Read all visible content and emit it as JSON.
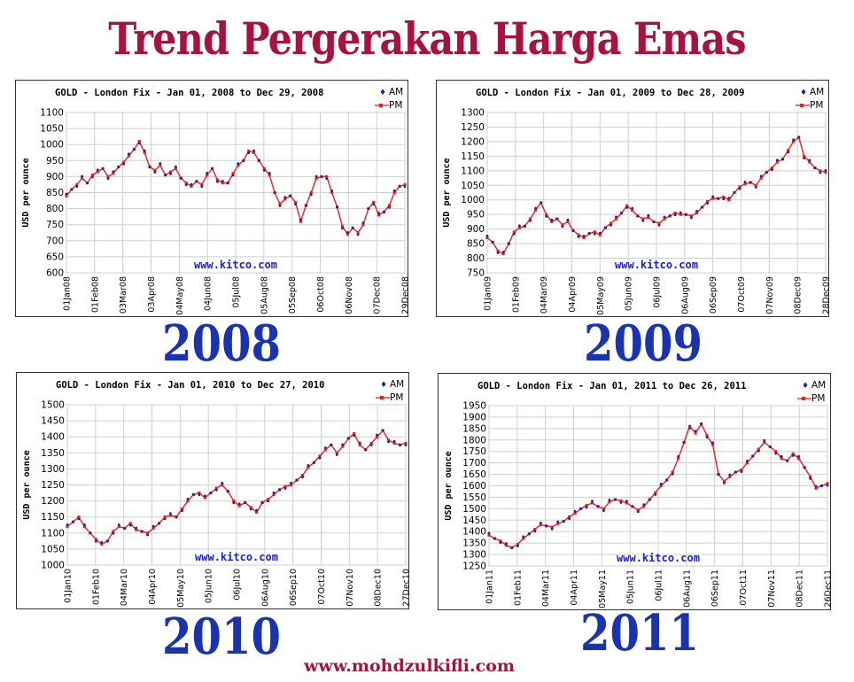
{
  "page": {
    "title": "Trend Pergerakan Harga Emas",
    "footer": "www.mohdzulkifli.com"
  },
  "colors": {
    "title": "#a8123e",
    "year": "#1a33b0",
    "am": "#1a22a8",
    "pm": "#e8201e",
    "watermark": "#1a22cc"
  },
  "chart_data": [
    {
      "type": "line",
      "year_label": "2008",
      "title": "GOLD - London Fix - Jan 01, 2008 to Dec 29, 2008",
      "ylabel": "USD per ounce",
      "watermark": "www.kitco.com",
      "grid": true,
      "legend": "top-right",
      "ylim": [
        600,
        1100
      ],
      "yticks": [
        "600",
        "650",
        "700",
        "750",
        "800",
        "850",
        "900",
        "950",
        "1000",
        "1050",
        "1100"
      ],
      "xticks": [
        "01Jan08",
        "01Feb08",
        "03Mar08",
        "03Apr08",
        "04May08",
        "04Jun08",
        "05Jul08",
        "05Aug08",
        "05Sep08",
        "06Oct08",
        "06Nov08",
        "07Dec08",
        "29Dec08"
      ],
      "series": [
        {
          "name": "AM",
          "style": "markers"
        },
        {
          "name": "PM",
          "style": "line"
        }
      ],
      "values": [
        840,
        860,
        875,
        895,
        880,
        905,
        915,
        925,
        900,
        910,
        930,
        945,
        965,
        985,
        1010,
        975,
        930,
        920,
        935,
        905,
        915,
        925,
        895,
        880,
        870,
        885,
        875,
        905,
        925,
        890,
        880,
        880,
        910,
        935,
        950,
        980,
        975,
        950,
        925,
        905,
        850,
        815,
        830,
        840,
        820,
        760,
        810,
        850,
        895,
        900,
        900,
        850,
        805,
        745,
        720,
        740,
        725,
        750,
        800,
        820,
        780,
        790,
        810,
        850,
        870,
        875
      ]
    },
    {
      "type": "line",
      "year_label": "2009",
      "title": "GOLD - London Fix - Jan 01, 2009 to Dec 28, 2009",
      "ylabel": "USD per ounce",
      "watermark": "www.kitco.com",
      "grid": true,
      "legend": "top-right",
      "ylim": [
        750,
        1300
      ],
      "yticks": [
        "750",
        "800",
        "850",
        "900",
        "950",
        "1000",
        "1050",
        "1100",
        "1150",
        "1200",
        "1250",
        "1300"
      ],
      "xticks": [
        "01Jan09",
        "01Feb09",
        "04Mar09",
        "04Apr09",
        "05May09",
        "05Jun09",
        "06Jul09",
        "06Aug09",
        "06Sep09",
        "07Oct09",
        "07Nov09",
        "08Dec09",
        "28Dec09"
      ],
      "series": [
        {
          "name": "AM",
          "style": "markers"
        },
        {
          "name": "PM",
          "style": "line"
        }
      ],
      "values": [
        870,
        855,
        825,
        815,
        850,
        890,
        905,
        910,
        935,
        965,
        990,
        950,
        925,
        935,
        915,
        925,
        895,
        880,
        870,
        885,
        890,
        880,
        905,
        920,
        935,
        955,
        980,
        965,
        945,
        935,
        940,
        925,
        920,
        935,
        945,
        955,
        950,
        950,
        945,
        955,
        975,
        995,
        1005,
        1005,
        1010,
        1000,
        1025,
        1045,
        1055,
        1060,
        1050,
        1075,
        1095,
        1110,
        1130,
        1140,
        1170,
        1200,
        1215,
        1150,
        1130,
        1110,
        1100,
        1095
      ]
    },
    {
      "type": "line",
      "year_label": "2010",
      "title": "GOLD - London Fix - Jan 01, 2010 to Dec 27, 2010",
      "ylabel": "USD per ounce",
      "watermark": "www.kitco.com",
      "grid": true,
      "legend": "top-right",
      "ylim": [
        1000,
        1500
      ],
      "yticks": [
        "1000",
        "1050",
        "1100",
        "1150",
        "1200",
        "1250",
        "1300",
        "1350",
        "1400",
        "1450",
        "1500"
      ],
      "xticks": [
        "01Jan10",
        "01Feb10",
        "04Mar10",
        "04Apr10",
        "05May10",
        "05Jun10",
        "06Jul10",
        "06Aug10",
        "06Sep10",
        "07Oct10",
        "07Nov10",
        "08Dec10",
        "27Dec10"
      ],
      "series": [
        {
          "name": "AM",
          "style": "markers"
        },
        {
          "name": "PM",
          "style": "line"
        }
      ],
      "values": [
        1120,
        1135,
        1150,
        1120,
        1100,
        1080,
        1065,
        1075,
        1105,
        1120,
        1115,
        1130,
        1110,
        1105,
        1100,
        1115,
        1130,
        1150,
        1155,
        1150,
        1175,
        1200,
        1220,
        1225,
        1210,
        1225,
        1240,
        1250,
        1230,
        1200,
        1185,
        1195,
        1180,
        1165,
        1195,
        1205,
        1220,
        1235,
        1245,
        1250,
        1265,
        1280,
        1305,
        1320,
        1340,
        1360,
        1375,
        1350,
        1370,
        1395,
        1410,
        1375,
        1360,
        1380,
        1400,
        1420,
        1390,
        1380,
        1375,
        1380
      ]
    },
    {
      "type": "line",
      "year_label": "2011",
      "title": "GOLD - London Fix - Jan 01, 2011 to Dec 26, 2011",
      "ylabel": "USD per ounce",
      "watermark": "www.kitco.com",
      "grid": true,
      "legend": "top-right",
      "ylim": [
        1250,
        1950
      ],
      "yticks": [
        "1250",
        "1300",
        "1350",
        "1400",
        "1450",
        "1500",
        "1550",
        "1600",
        "1650",
        "1700",
        "1750",
        "1800",
        "1850",
        "1900",
        "1950"
      ],
      "xticks": [
        "01Jan11",
        "01Feb11",
        "04Mar11",
        "04Apr11",
        "05May11",
        "05Jun11",
        "06Jul11",
        "06Aug11",
        "06Sep11",
        "07Oct11",
        "07Nov11",
        "08Dec11",
        "26Dec11"
      ],
      "series": [
        {
          "name": "AM",
          "style": "markers"
        },
        {
          "name": "PM",
          "style": "line"
        }
      ],
      "values": [
        1385,
        1370,
        1360,
        1340,
        1330,
        1345,
        1370,
        1390,
        1410,
        1430,
        1425,
        1420,
        1435,
        1445,
        1465,
        1480,
        1500,
        1515,
        1525,
        1510,
        1500,
        1530,
        1540,
        1535,
        1525,
        1510,
        1495,
        1510,
        1540,
        1570,
        1600,
        1625,
        1660,
        1720,
        1790,
        1860,
        1830,
        1870,
        1820,
        1780,
        1650,
        1620,
        1640,
        1660,
        1670,
        1700,
        1730,
        1760,
        1790,
        1770,
        1750,
        1720,
        1710,
        1740,
        1720,
        1680,
        1640,
        1590,
        1600,
        1610
      ]
    }
  ]
}
